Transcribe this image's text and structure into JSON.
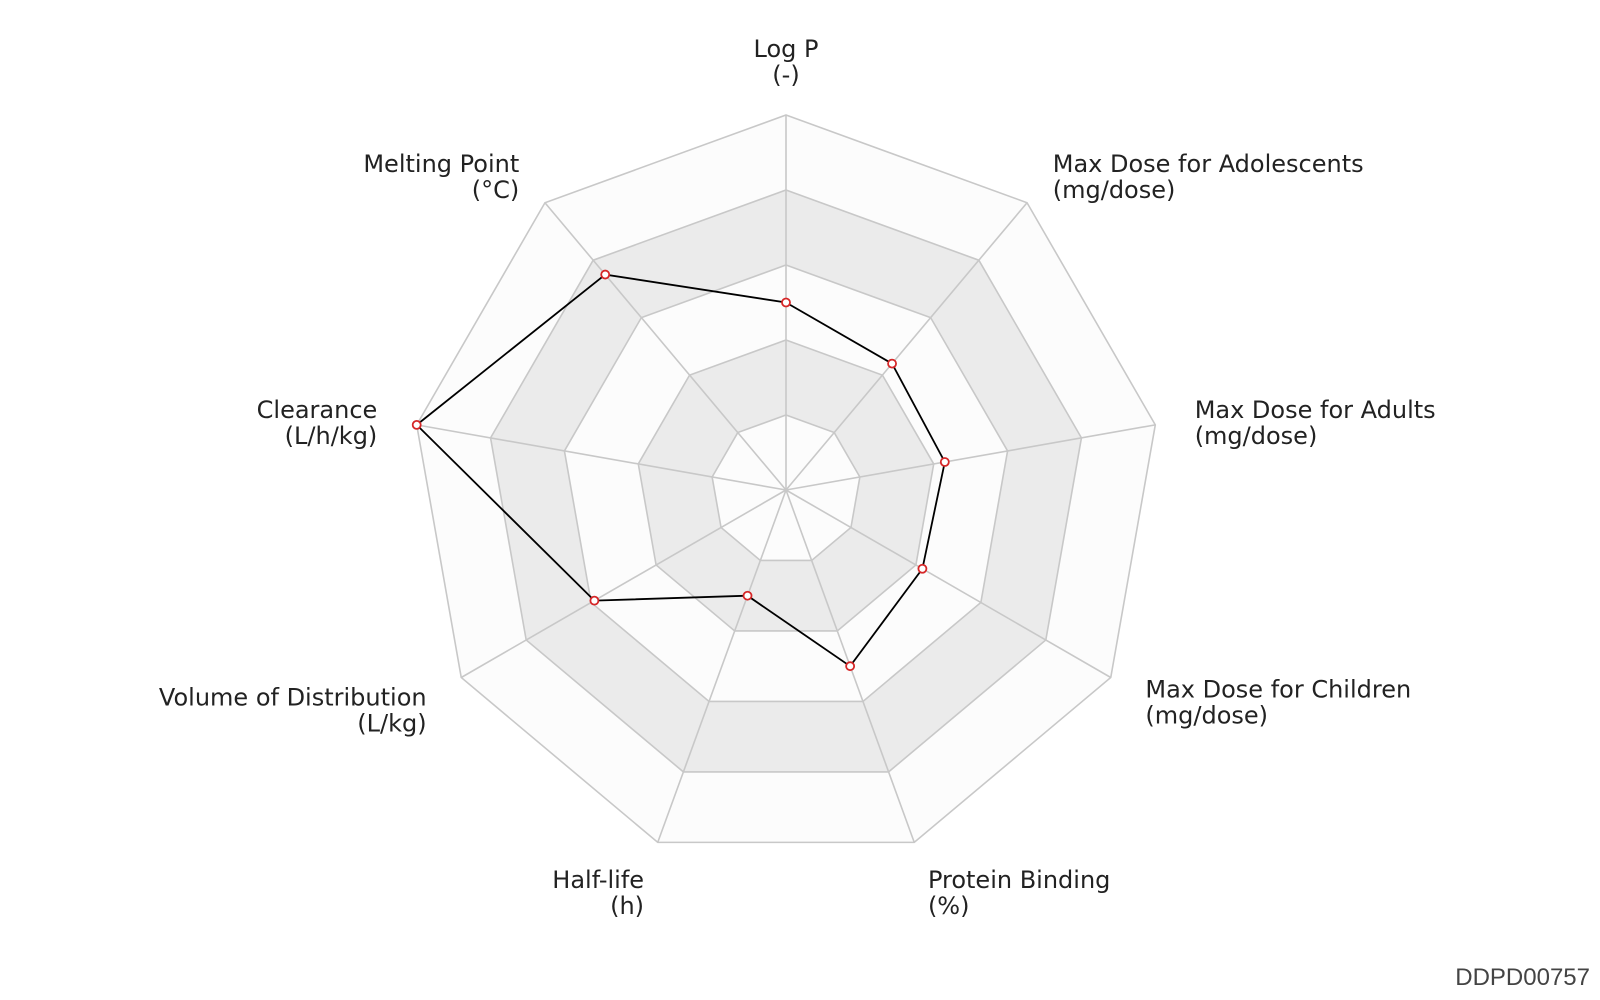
{
  "chart_id": "DDPD00757",
  "chart_data": {
    "type": "radar",
    "title": "",
    "axes": [
      {
        "name": "Log P",
        "unit": "(-)"
      },
      {
        "name": "Max Dose for Adolescents",
        "unit": "(mg/dose)"
      },
      {
        "name": "Max Dose for Adults",
        "unit": "(mg/dose)"
      },
      {
        "name": "Max Dose for Children",
        "unit": "(mg/dose)"
      },
      {
        "name": "Protein Binding",
        "unit": "(%)"
      },
      {
        "name": "Half-life",
        "unit": "(h)"
      },
      {
        "name": "Volume of Distribution",
        "unit": "(L/kg)"
      },
      {
        "name": "Clearance",
        "unit": "(L/h/kg)"
      },
      {
        "name": "Melting Point",
        "unit": "(°C)"
      }
    ],
    "range": [
      0,
      1
    ],
    "rings": 5,
    "grid": true,
    "series": [
      {
        "values": [
          0.5,
          0.44,
          0.43,
          0.42,
          0.5,
          0.3,
          0.59,
          1.0,
          0.75
        ]
      }
    ],
    "colors": {
      "line": "#000000",
      "marker_edge": "#d62728",
      "marker_fill": "#ffffff",
      "grid_line": "#c8c8c8",
      "band_light": "#fcfcfc",
      "band_dark": "#ebebeb"
    }
  }
}
